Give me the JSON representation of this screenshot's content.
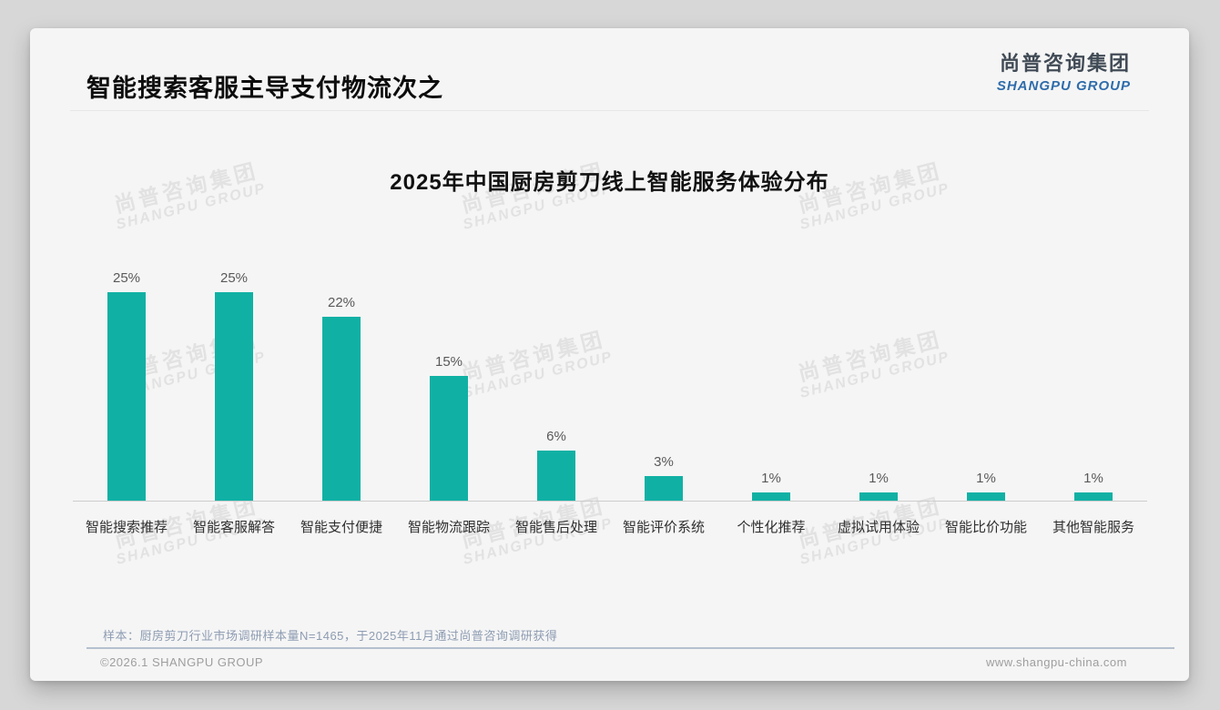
{
  "header": {
    "title": "智能搜索客服主导支付物流次之",
    "logo_cn": "尚普咨询集团",
    "logo_en": "SHANGPU GROUP"
  },
  "watermark": {
    "line1": "尚普咨询集团",
    "line2": "SHANGPU GROUP"
  },
  "chart_data": {
    "type": "bar",
    "title": "2025年中国厨房剪刀线上智能服务体验分布",
    "categories": [
      "智能搜索推荐",
      "智能客服解答",
      "智能支付便捷",
      "智能物流跟踪",
      "智能售后处理",
      "智能评价系统",
      "个性化推荐",
      "虚拟试用体验",
      "智能比价功能",
      "其他智能服务"
    ],
    "values": [
      25,
      25,
      22,
      15,
      6,
      3,
      1,
      1,
      1,
      1
    ],
    "data_labels": [
      "25%",
      "25%",
      "22%",
      "15%",
      "6%",
      "3%",
      "1%",
      "1%",
      "1%",
      "1%"
    ],
    "unit": "%",
    "xlabel": "",
    "ylabel": "",
    "ylim": [
      0,
      27
    ],
    "grid": false,
    "legend": false,
    "bar_color": "#10b1a4"
  },
  "note": "样本：厨房剪刀行业市场调研样本量N=1465，于2025年11月通过尚普咨询调研获得",
  "footer": {
    "left": "©2026.1 SHANGPU GROUP",
    "right": "www.shangpu-china.com"
  },
  "colors": {
    "bar": "#10b1a4",
    "logo_blue": "#2e6cab",
    "note_text": "#8d9cb2"
  }
}
